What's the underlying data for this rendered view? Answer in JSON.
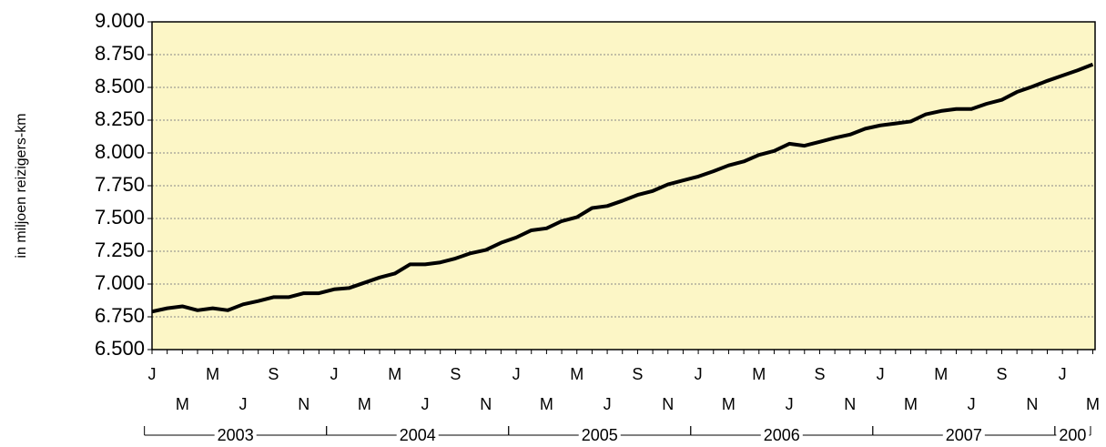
{
  "chart_data": {
    "type": "line",
    "y_label": "in miljoen reizigers-km",
    "categories": [
      "J",
      null,
      "M",
      null,
      "M",
      null,
      "J",
      null,
      "S",
      null,
      "N",
      null,
      "J",
      null,
      "M",
      null,
      "M",
      null,
      "J",
      null,
      "S",
      null,
      "N",
      null,
      "J",
      null,
      "M",
      null,
      "M",
      null,
      "J",
      null,
      "S",
      null,
      "N",
      null,
      "J",
      null,
      "M",
      null,
      "M",
      null,
      "J",
      null,
      "S",
      null,
      "N",
      null,
      "J",
      null,
      "M",
      null,
      "M",
      null,
      "J",
      null,
      "S",
      null,
      "N",
      null,
      "J",
      null,
      "M"
    ],
    "years": [
      "2003",
      "2004",
      "2005",
      "2006",
      "2007",
      "200"
    ],
    "series": [
      {
        "color": "#000000",
        "values": [
          6790,
          6815,
          6830,
          6800,
          6815,
          6800,
          6845,
          6870,
          6900,
          6900,
          6930,
          6930,
          6960,
          6970,
          7010,
          7050,
          7080,
          7150,
          7150,
          7165,
          7195,
          7235,
          7260,
          7315,
          7355,
          7410,
          7425,
          7480,
          7510,
          7580,
          7595,
          7635,
          7680,
          7710,
          7760,
          7790,
          7820,
          7860,
          7905,
          7935,
          7985,
          8015,
          8070,
          8055,
          8085,
          8115,
          8140,
          8185,
          8210,
          8225,
          8240,
          8295,
          8320,
          8335,
          8335,
          8375,
          8405,
          8465,
          8505,
          8550,
          8590,
          8630,
          8675
        ]
      }
    ],
    "ylim": [
      6500,
      9000
    ],
    "yticks": [
      {
        "value": 6500,
        "label": "6.500"
      },
      {
        "value": 6750,
        "label": "6.750"
      },
      {
        "value": 7000,
        "label": "7.000"
      },
      {
        "value": 7250,
        "label": "7.250"
      },
      {
        "value": 7500,
        "label": "7.500"
      },
      {
        "value": 7750,
        "label": "7.750"
      },
      {
        "value": 8000,
        "label": "8.000"
      },
      {
        "value": 8250,
        "label": "8.250"
      },
      {
        "value": 8500,
        "label": "8.500"
      },
      {
        "value": 8750,
        "label": "8.750"
      },
      {
        "value": 9000,
        "label": "9.000"
      }
    ],
    "grid": true,
    "background": "#fcf6c6"
  }
}
